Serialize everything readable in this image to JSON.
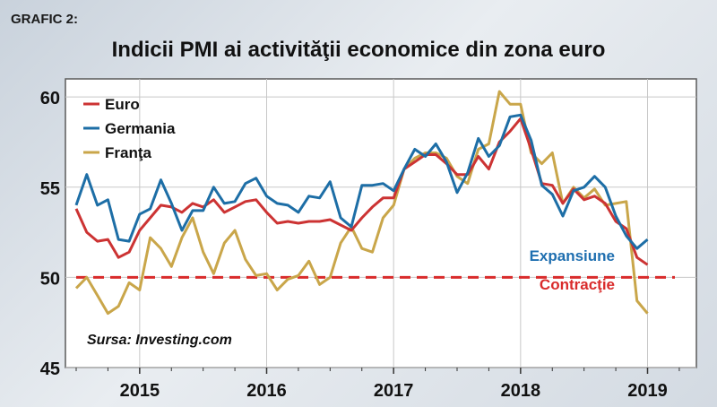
{
  "label": "GRAFIC 2:",
  "source": "Sursa: Investing.com",
  "annotations": {
    "above": "Expansiune",
    "below": "Contracţie"
  },
  "colors": {
    "euro": "#cc3333",
    "germania": "#1d6ea6",
    "franta": "#c9a64a",
    "threshold": "#d92b2b",
    "expansiune_text": "#1f6fb0",
    "contractie_text": "#d92b2b"
  },
  "chart_data": {
    "type": "line",
    "title": "Indicii PMI ai activităţii economice din zona euro",
    "xlabel": "",
    "ylabel": "",
    "ylim": [
      45,
      61
    ],
    "y_ticks": [
      45,
      50,
      55,
      60
    ],
    "x_ticks": [
      2015,
      2016,
      2017,
      2018,
      2019
    ],
    "grid": true,
    "legend": "top-left",
    "threshold": 50,
    "x": [
      2014.5,
      2014.583,
      2014.667,
      2014.75,
      2014.833,
      2014.917,
      2015.0,
      2015.083,
      2015.167,
      2015.25,
      2015.333,
      2015.417,
      2015.5,
      2015.583,
      2015.667,
      2015.75,
      2015.833,
      2015.917,
      2016.0,
      2016.083,
      2016.167,
      2016.25,
      2016.333,
      2016.417,
      2016.5,
      2016.583,
      2016.667,
      2016.75,
      2016.833,
      2016.917,
      2017.0,
      2017.083,
      2017.167,
      2017.25,
      2017.333,
      2017.417,
      2017.5,
      2017.583,
      2017.667,
      2017.75,
      2017.833,
      2017.917,
      2018.0,
      2018.083,
      2018.167,
      2018.25,
      2018.333,
      2018.417,
      2018.5,
      2018.583,
      2018.667,
      2018.75,
      2018.833,
      2018.917,
      2019.0
    ],
    "series": [
      {
        "name": "Euro",
        "color": "#cc3333",
        "values": [
          53.8,
          52.5,
          52.0,
          52.1,
          51.1,
          51.4,
          52.6,
          53.3,
          54.0,
          53.9,
          53.6,
          54.1,
          53.9,
          54.3,
          53.6,
          53.9,
          54.2,
          54.3,
          53.6,
          53.0,
          53.1,
          53.0,
          53.1,
          53.1,
          53.2,
          52.9,
          52.6,
          53.3,
          53.9,
          54.4,
          54.4,
          56.0,
          56.4,
          56.8,
          56.8,
          56.3,
          55.7,
          55.7,
          56.7,
          56.0,
          57.5,
          58.1,
          58.8,
          57.1,
          55.2,
          55.1,
          54.1,
          54.9,
          54.3,
          54.5,
          54.1,
          53.1,
          52.7,
          51.1,
          50.7
        ]
      },
      {
        "name": "Germania",
        "color": "#1d6ea6",
        "values": [
          54.0,
          55.7,
          54.0,
          54.3,
          52.1,
          52.0,
          53.5,
          53.8,
          55.4,
          54.1,
          52.6,
          53.7,
          53.7,
          55.0,
          54.1,
          54.2,
          55.2,
          55.5,
          54.5,
          54.1,
          54.0,
          53.6,
          54.5,
          54.4,
          55.3,
          53.3,
          52.8,
          55.1,
          55.1,
          55.2,
          54.8,
          56.0,
          57.1,
          56.7,
          57.4,
          56.4,
          54.7,
          55.8,
          57.7,
          56.7,
          57.3,
          58.9,
          59.0,
          57.6,
          55.1,
          54.6,
          53.4,
          54.8,
          55.0,
          55.6,
          55.0,
          53.4,
          52.3,
          51.6,
          52.1
        ]
      },
      {
        "name": "Franţa",
        "color": "#c9a64a",
        "values": [
          49.4,
          50.0,
          49.0,
          48.0,
          48.4,
          49.7,
          49.3,
          52.2,
          51.6,
          50.6,
          52.2,
          53.3,
          51.4,
          50.2,
          51.9,
          52.6,
          51.0,
          50.1,
          50.2,
          49.3,
          49.9,
          50.1,
          50.9,
          49.6,
          50.0,
          51.9,
          52.8,
          51.6,
          51.4,
          53.3,
          54.0,
          56.0,
          56.6,
          56.9,
          56.9,
          56.6,
          55.6,
          55.2,
          57.1,
          57.4,
          60.3,
          59.6,
          59.6,
          56.9,
          56.3,
          56.9,
          54.1,
          55.0,
          54.4,
          54.9,
          54.0,
          54.1,
          54.2,
          48.7,
          48.0
        ]
      }
    ]
  }
}
